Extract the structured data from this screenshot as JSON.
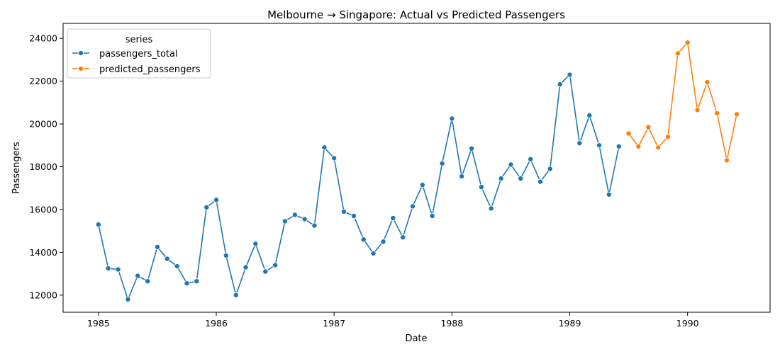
{
  "chart_data": {
    "type": "line",
    "title": "Melbourne → Singapore: Actual vs Predicted Passengers",
    "xlabel": "Date",
    "ylabel": "Passengers",
    "xlim": [
      1984.7,
      1990.7
    ],
    "ylim": [
      11200,
      24700
    ],
    "x_ticks": [
      1985,
      1986,
      1987,
      1988,
      1989,
      1990
    ],
    "x_tick_labels": [
      "1985",
      "1986",
      "1987",
      "1988",
      "1989",
      "1990"
    ],
    "y_ticks": [
      12000,
      14000,
      16000,
      18000,
      20000,
      22000,
      24000
    ],
    "y_tick_labels": [
      "12000",
      "14000",
      "16000",
      "18000",
      "20000",
      "22000",
      "24000"
    ],
    "grid": false,
    "legend": {
      "title": "series",
      "position": "top-left"
    },
    "series": [
      {
        "name": "passengers_total",
        "color": "#1f77b4",
        "marker": "circle",
        "x": [
          1985.0,
          1985.083,
          1985.167,
          1985.25,
          1985.333,
          1985.417,
          1985.5,
          1985.583,
          1985.667,
          1985.75,
          1985.833,
          1985.917,
          1986.0,
          1986.083,
          1986.167,
          1986.25,
          1986.333,
          1986.417,
          1986.5,
          1986.583,
          1986.667,
          1986.75,
          1986.833,
          1986.917,
          1987.0,
          1987.083,
          1987.167,
          1987.25,
          1987.333,
          1987.417,
          1987.5,
          1987.583,
          1987.667,
          1987.75,
          1987.833,
          1987.917,
          1988.0,
          1988.083,
          1988.167,
          1988.25,
          1988.333,
          1988.417,
          1988.5,
          1988.583,
          1988.667,
          1988.75,
          1988.833,
          1988.917,
          1989.0,
          1989.083,
          1989.167,
          1989.25,
          1989.333,
          1989.417
        ],
        "y": [
          15300,
          13250,
          13200,
          11800,
          12900,
          12650,
          14250,
          13700,
          13350,
          12550,
          12650,
          16100,
          16450,
          13850,
          12000,
          13300,
          14400,
          13100,
          13400,
          15450,
          15750,
          15550,
          15250,
          18900,
          18400,
          15900,
          15700,
          14600,
          13950,
          14500,
          15600,
          14700,
          16150,
          17150,
          15700,
          18150,
          20250,
          17550,
          18850,
          17050,
          16050,
          17450,
          18100,
          17450,
          18350,
          17300,
          17900,
          21850,
          22300,
          19100,
          20400,
          19000,
          16700,
          18950
        ]
      },
      {
        "name": "predicted_passengers",
        "color": "#ff7f0e",
        "marker": "circle",
        "x": [
          1989.5,
          1989.583,
          1989.667,
          1989.75,
          1989.833,
          1989.917,
          1990.0,
          1990.083,
          1990.167,
          1990.25,
          1990.333,
          1990.417
        ],
        "y": [
          19550,
          18950,
          19850,
          18900,
          19400,
          23300,
          23800,
          20650,
          21950,
          20500,
          18300,
          20450
        ]
      }
    ]
  }
}
